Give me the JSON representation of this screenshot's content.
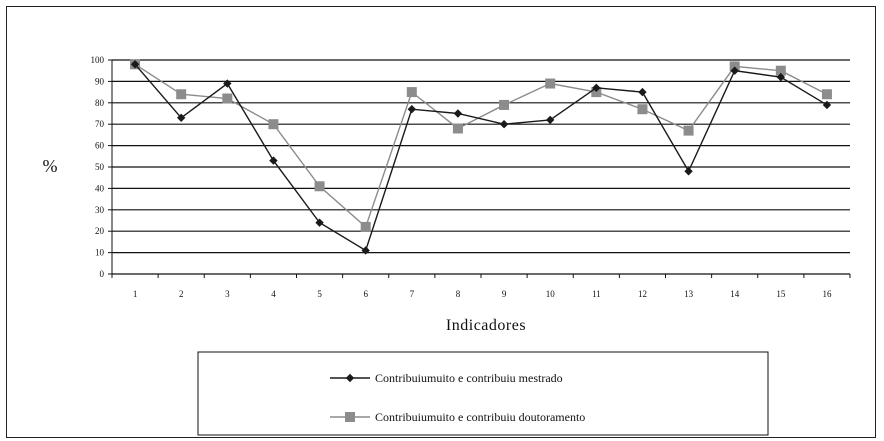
{
  "chart_data": {
    "type": "line",
    "xlabel": "Indicadores",
    "ylabel": "%",
    "x": [
      "1",
      "2",
      "3",
      "4",
      "5",
      "6",
      "7",
      "8",
      "9",
      "10",
      "11",
      "12",
      "13",
      "14",
      "15",
      "16"
    ],
    "yticks": [
      "0",
      "10",
      "20",
      "30",
      "40",
      "50",
      "60",
      "70",
      "80",
      "90",
      "100"
    ],
    "ylim": [
      0,
      100
    ],
    "grid": "horizontal",
    "legend_position": "bottom",
    "series": [
      {
        "name": "Contribuiumuito e contribuiu mestrado",
        "marker": "diamond",
        "color": "#1a1a1a",
        "values": [
          98,
          73,
          89,
          53,
          24,
          11,
          77,
          75,
          70,
          72,
          87,
          85,
          48,
          95,
          92,
          79
        ]
      },
      {
        "name": "Contribuiumuito e contribuiu doutoramento",
        "marker": "square",
        "color": "#8c8c8c",
        "values": [
          98,
          84,
          82,
          70,
          41,
          22,
          85,
          68,
          79,
          89,
          85,
          77,
          67,
          97,
          95,
          84
        ]
      }
    ]
  }
}
